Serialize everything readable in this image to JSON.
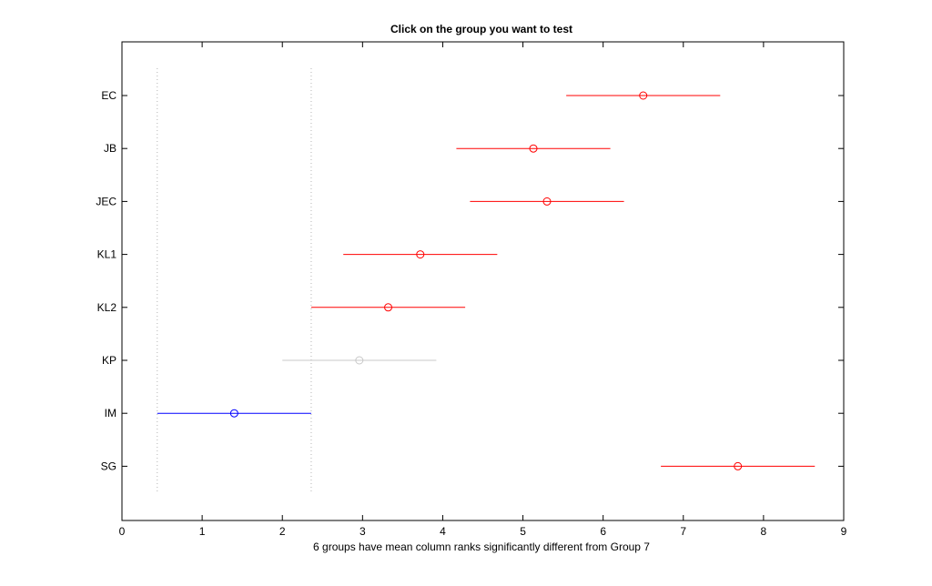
{
  "chart_data": {
    "type": "scatter",
    "title": "Click on the group you want to test",
    "xlabel": "6 groups have mean column ranks significantly different from Group 7",
    "ylabel": "",
    "xlim": [
      0,
      9
    ],
    "xticks": [
      "0",
      "1",
      "2",
      "3",
      "4",
      "5",
      "6",
      "7",
      "8",
      "9"
    ],
    "grid": false,
    "reference_lines_x": [
      0.44,
      2.36
    ],
    "groups": [
      {
        "label": "EC",
        "mean": 6.5,
        "lower": 5.54,
        "upper": 7.46,
        "color": "#ff0000"
      },
      {
        "label": "JB",
        "mean": 5.13,
        "lower": 4.17,
        "upper": 6.09,
        "color": "#ff0000"
      },
      {
        "label": "JEC",
        "mean": 5.3,
        "lower": 4.34,
        "upper": 6.26,
        "color": "#ff0000"
      },
      {
        "label": "KL1",
        "mean": 3.72,
        "lower": 2.76,
        "upper": 4.68,
        "color": "#ff0000"
      },
      {
        "label": "KL2",
        "mean": 3.32,
        "lower": 2.36,
        "upper": 4.28,
        "color": "#ff0000"
      },
      {
        "label": "KP",
        "mean": 2.96,
        "lower": 2.0,
        "upper": 3.92,
        "color": "#c8c8c8"
      },
      {
        "label": "IM",
        "mean": 1.4,
        "lower": 0.44,
        "upper": 2.36,
        "color": "#0000ff"
      },
      {
        "label": "SG",
        "mean": 7.68,
        "lower": 6.72,
        "upper": 8.64,
        "color": "#ff0000"
      }
    ]
  }
}
